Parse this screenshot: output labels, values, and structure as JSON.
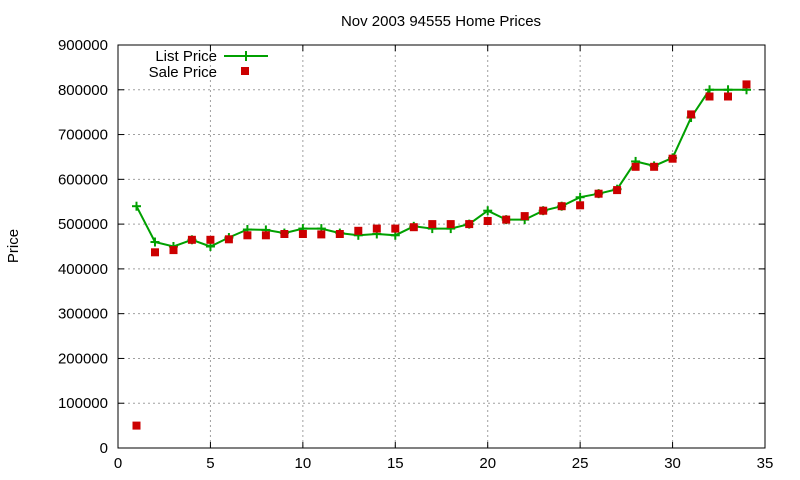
{
  "chart_data": {
    "type": "line",
    "title": "Nov 2003 94555 Home Prices",
    "xlabel": "",
    "ylabel": "Price",
    "xlim": [
      0,
      35
    ],
    "ylim": [
      0,
      900000
    ],
    "xticks": [
      "0",
      "5",
      "10",
      "15",
      "20",
      "25",
      "30",
      "35"
    ],
    "yticks": [
      "0",
      "100000",
      "200000",
      "300000",
      "400000",
      "500000",
      "600000",
      "700000",
      "800000",
      "900000"
    ],
    "grid": true,
    "legend_position": "top-left",
    "x": [
      1,
      2,
      3,
      4,
      5,
      6,
      7,
      8,
      9,
      10,
      11,
      12,
      13,
      14,
      15,
      16,
      17,
      18,
      19,
      20,
      21,
      22,
      23,
      24,
      25,
      26,
      27,
      28,
      29,
      30,
      31,
      32,
      33,
      34
    ],
    "series": [
      {
        "name": "List Price",
        "style": "line+cross",
        "color": "#00a000",
        "values": [
          540000,
          460000,
          450000,
          465000,
          450000,
          470000,
          488000,
          487000,
          480000,
          490000,
          490000,
          480000,
          475000,
          478000,
          475000,
          495000,
          490000,
          490000,
          500000,
          530000,
          510000,
          510000,
          530000,
          540000,
          560000,
          568000,
          578000,
          640000,
          630000,
          648000,
          738000,
          800000,
          800000,
          800000
        ]
      },
      {
        "name": "Sale Price",
        "style": "square",
        "color": "#cc0000",
        "values": [
          50000,
          437000,
          442000,
          465000,
          465000,
          466000,
          475000,
          475000,
          478000,
          478000,
          477000,
          478000,
          485000,
          490000,
          490000,
          493000,
          500000,
          500000,
          500000,
          507000,
          510000,
          518000,
          530000,
          540000,
          542000,
          568000,
          576000,
          628000,
          628000,
          646000,
          745000,
          785000,
          785000,
          812000
        ]
      }
    ]
  }
}
